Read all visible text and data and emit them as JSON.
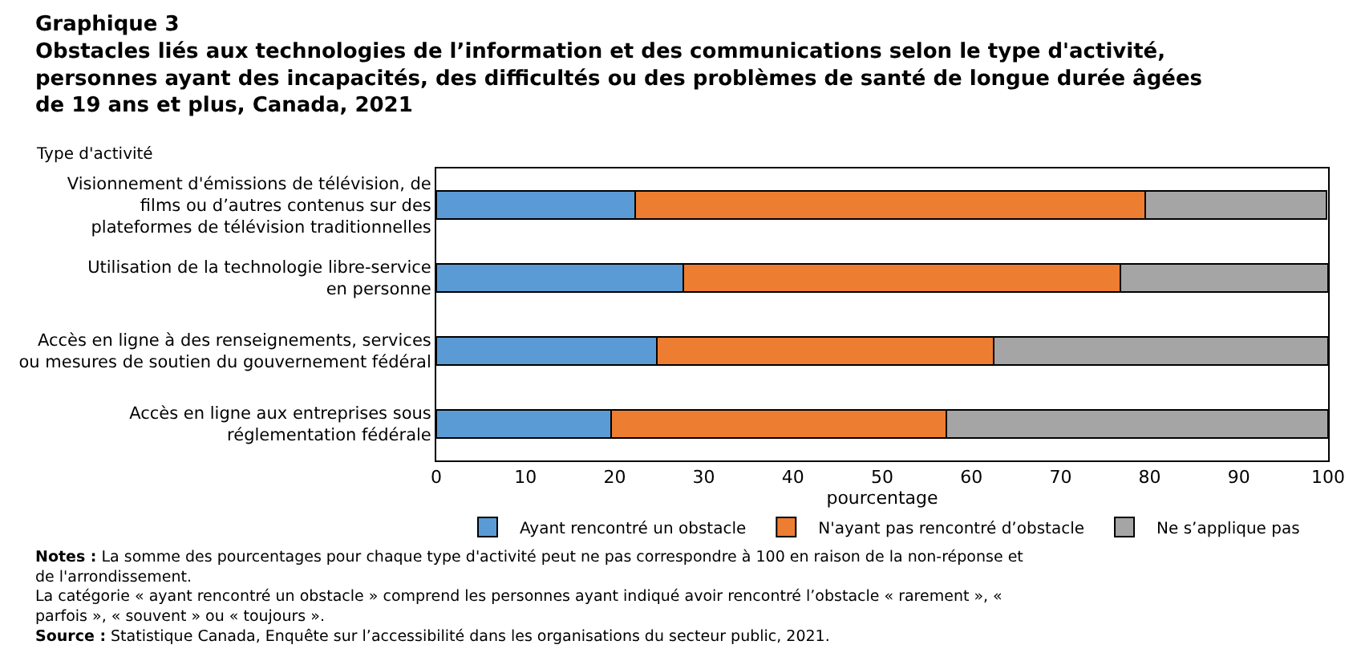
{
  "chart_data": {
    "type": "bar",
    "orientation": "horizontal",
    "stacked": true,
    "title": "Graphique 3",
    "subtitle": "Obstacles liés aux technologies de l’information et des communications selon le type d'activité, personnes ayant des incapacités, des difficultés ou des problèmes de santé de longue durée âgées de 19 ans et plus, Canada, 2021",
    "ylabel": "Type d'activité",
    "xlabel": "pourcentage",
    "categories": [
      "Visionnement d'émissions de télévision, de films ou d’autres contenus sur des plateformes de télévision traditionnelles",
      "Utilisation de la technologie libre-service en personne",
      "Accès en ligne à des renseignements, services ou mesures de soutien du gouvernement fédéral",
      "Accès en ligne aux entreprises sous réglementation fédérale"
    ],
    "series": [
      {
        "name": "Ayant rencontré un obstacle",
        "color": "#5b9bd5",
        "values": [
          22.3,
          27.7,
          24.7,
          19.6
        ]
      },
      {
        "name": "N'ayant pas rencontré d’obstacle",
        "color": "#ed7d31",
        "values": [
          57.2,
          49.0,
          37.8,
          37.6
        ]
      },
      {
        "name": "Ne s’applique pas",
        "color": "#a5a5a5",
        "values": [
          20.3,
          23.3,
          37.5,
          42.8
        ]
      }
    ],
    "xlim": [
      0,
      100
    ],
    "xticks": [
      0,
      10,
      20,
      30,
      40,
      50,
      60,
      70,
      80,
      90,
      100
    ],
    "legend": "bottom",
    "annotations": [
      "Notes : La somme des pourcentages pour chaque type d'activité peut ne pas correspondre à 100 en raison de la non-réponse et de l'arrondissement.",
      "La catégorie « ayant rencontré un obstacle » comprend les personnes ayant indiqué avoir rencontré l’obstacle « rarement », « parfois », « souvent » ou « toujours ».",
      "Source : Statistique Canada, Enquête sur l’accessibilité dans les organisations du secteur public, 2021."
    ]
  }
}
